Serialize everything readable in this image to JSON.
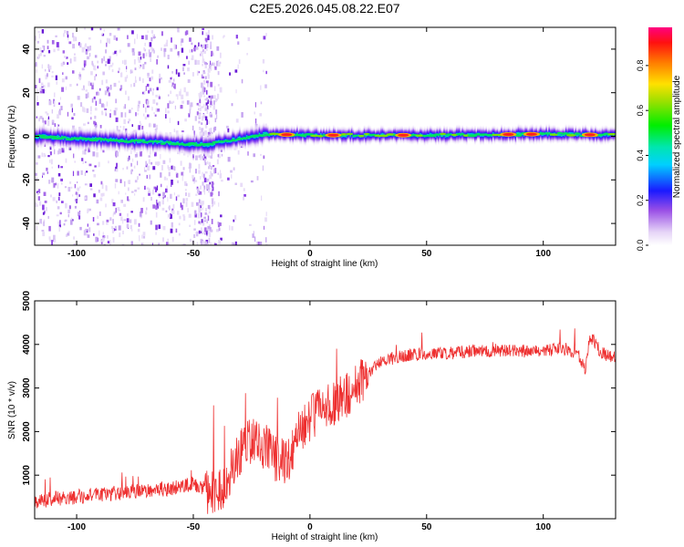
{
  "title": "C2E5.2026.045.08.22.E07",
  "chart_data": [
    {
      "type": "heatmap",
      "name": "spectrogram",
      "xlabel": "Height of straight line (km)",
      "ylabel": "Frequency (Hz)",
      "xlim": [
        -118,
        131
      ],
      "ylim": [
        -50,
        50
      ],
      "xticks": [
        -100,
        -50,
        0,
        50,
        100
      ],
      "xtick_labels": [
        "-100",
        "-50",
        "0",
        "50",
        "100"
      ],
      "yticks": [
        -40,
        -20,
        0,
        20,
        40
      ],
      "ytick_labels": [
        "-40",
        "-20",
        "0",
        "20",
        "40"
      ],
      "colorbar": {
        "label": "Normalized spectral amplitude",
        "range": [
          0,
          0.97
        ],
        "ticks": [
          0.0,
          0.2,
          0.4,
          0.6,
          0.8
        ],
        "tick_labels": [
          "0.0",
          "0.2",
          "0.4",
          "0.6",
          "0.8"
        ]
      },
      "ridge": {
        "x": [
          -118,
          -100,
          -80,
          -60,
          -45,
          -40,
          -30,
          -20,
          0,
          50,
          100,
          131
        ],
        "frequency": [
          0,
          -1,
          -2,
          -3,
          -4,
          -3,
          -1,
          1,
          0.5,
          0.5,
          1,
          0.5
        ]
      },
      "peaks": [
        {
          "x": -10,
          "amplitude": 0.95
        },
        {
          "x": 10,
          "amplitude": 0.9
        },
        {
          "x": 40,
          "amplitude": 0.92
        },
        {
          "x": 85,
          "amplitude": 0.95
        },
        {
          "x": 95,
          "amplitude": 0.95
        },
        {
          "x": 120,
          "amplitude": 0.9
        }
      ]
    },
    {
      "type": "line",
      "name": "snr",
      "xlabel": "Height of straight line (km)",
      "ylabel": "SNR (10 * v/v)",
      "xlim": [
        -118,
        131
      ],
      "ylim": [
        0,
        5000
      ],
      "xticks": [
        -100,
        -50,
        0,
        50,
        100
      ],
      "xtick_labels": [
        "-100",
        "-50",
        "0",
        "50",
        "100"
      ],
      "yticks": [
        1000,
        2000,
        3000,
        4000,
        5000
      ],
      "ytick_labels": [
        "1000",
        "2000",
        "3000",
        "4000",
        "5000"
      ],
      "color": "#ee3030",
      "x": [
        -118,
        -110,
        -100,
        -90,
        -80,
        -70,
        -60,
        -50,
        -45,
        -40,
        -35,
        -30,
        -25,
        -20,
        -15,
        -10,
        -5,
        0,
        5,
        10,
        15,
        20,
        25,
        30,
        40,
        50,
        60,
        70,
        80,
        90,
        100,
        110,
        115,
        118,
        120,
        125,
        131
      ],
      "y": [
        400,
        450,
        500,
        550,
        600,
        650,
        700,
        800,
        700,
        500,
        1000,
        1500,
        1800,
        1700,
        1400,
        1300,
        2000,
        2300,
        2500,
        2700,
        2800,
        3000,
        3300,
        3600,
        3750,
        3800,
        3800,
        3850,
        3850,
        3850,
        3850,
        3900,
        3800,
        3400,
        4200,
        3800,
        3700
      ]
    }
  ]
}
